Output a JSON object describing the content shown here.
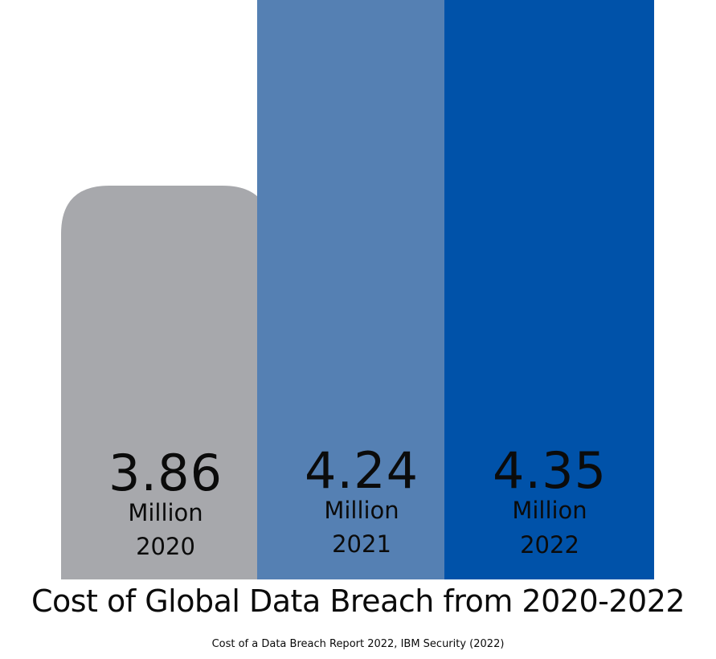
{
  "chart_data": {
    "type": "bar",
    "title": "Cost of Global Data Breach from 2020-2022",
    "source": "Cost of a Data Breach Report 2022, IBM Security (2022)",
    "categories": [
      "2020",
      "2021",
      "2022"
    ],
    "values": [
      3.86,
      4.24,
      4.35
    ],
    "value_labels": [
      "3.86",
      "4.24",
      "4.35"
    ],
    "unit_label": "Million",
    "colors": [
      "#a7a8ac",
      "#5580b3",
      "#0052a9"
    ]
  }
}
